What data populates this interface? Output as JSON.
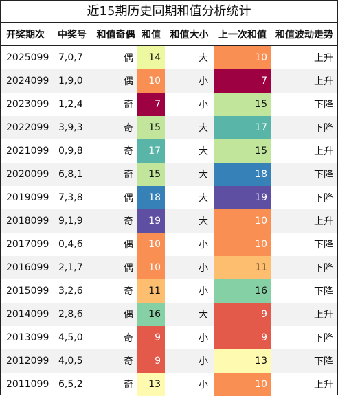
{
  "title": "近15期历史同期和值分析统计",
  "headers": [
    "开奖期次",
    "中奖号",
    "和值奇偶",
    "和值",
    "和值大小",
    "上一次和值",
    "和值波动走势"
  ],
  "color_scale": {
    "7": "#9e0142",
    "9": "#e45a4a",
    "10": "#fa8f53",
    "11": "#fdbe6f",
    "13": "#fefbb0",
    "14": "#eef8a0",
    "15": "#c0e59b",
    "16": "#85d0a4",
    "17": "#58b5a8",
    "18": "#3681b8",
    "19": "#5e4fa2"
  },
  "rows": [
    {
      "period": "2025099",
      "numbers": "7,0,7",
      "odd_even": "偶",
      "sum": "14",
      "size": "大",
      "prev_sum": "10",
      "trend": "上升"
    },
    {
      "period": "2024099",
      "numbers": "1,9,0",
      "odd_even": "偶",
      "sum": "10",
      "size": "小",
      "prev_sum": "7",
      "trend": "上升"
    },
    {
      "period": "2023099",
      "numbers": "1,2,4",
      "odd_even": "奇",
      "sum": "7",
      "size": "小",
      "prev_sum": "15",
      "trend": "下降"
    },
    {
      "period": "2022099",
      "numbers": "3,9,3",
      "odd_even": "奇",
      "sum": "15",
      "size": "大",
      "prev_sum": "17",
      "trend": "下降"
    },
    {
      "period": "2021099",
      "numbers": "0,9,8",
      "odd_even": "奇",
      "sum": "17",
      "size": "大",
      "prev_sum": "15",
      "trend": "上升"
    },
    {
      "period": "2020099",
      "numbers": "6,8,1",
      "odd_even": "奇",
      "sum": "15",
      "size": "大",
      "prev_sum": "18",
      "trend": "下降"
    },
    {
      "period": "2019099",
      "numbers": "7,3,8",
      "odd_even": "偶",
      "sum": "18",
      "size": "大",
      "prev_sum": "19",
      "trend": "下降"
    },
    {
      "period": "2018099",
      "numbers": "9,1,9",
      "odd_even": "奇",
      "sum": "19",
      "size": "大",
      "prev_sum": "10",
      "trend": "上升"
    },
    {
      "period": "2017099",
      "numbers": "0,4,6",
      "odd_even": "偶",
      "sum": "10",
      "size": "小",
      "prev_sum": "10",
      "trend": "下降"
    },
    {
      "period": "2016099",
      "numbers": "2,1,7",
      "odd_even": "偶",
      "sum": "10",
      "size": "小",
      "prev_sum": "11",
      "trend": "下降"
    },
    {
      "period": "2015099",
      "numbers": "3,2,6",
      "odd_even": "奇",
      "sum": "11",
      "size": "小",
      "prev_sum": "16",
      "trend": "下降"
    },
    {
      "period": "2014099",
      "numbers": "2,8,6",
      "odd_even": "偶",
      "sum": "16",
      "size": "大",
      "prev_sum": "9",
      "trend": "上升"
    },
    {
      "period": "2013099",
      "numbers": "4,5,0",
      "odd_even": "奇",
      "sum": "9",
      "size": "小",
      "prev_sum": "9",
      "trend": "下降"
    },
    {
      "period": "2012099",
      "numbers": "4,0,5",
      "odd_even": "奇",
      "sum": "9",
      "size": "小",
      "prev_sum": "13",
      "trend": "下降"
    },
    {
      "period": "2011099",
      "numbers": "6,5,2",
      "odd_even": "奇",
      "sum": "13",
      "size": "小",
      "prev_sum": "10",
      "trend": "上升"
    }
  ]
}
